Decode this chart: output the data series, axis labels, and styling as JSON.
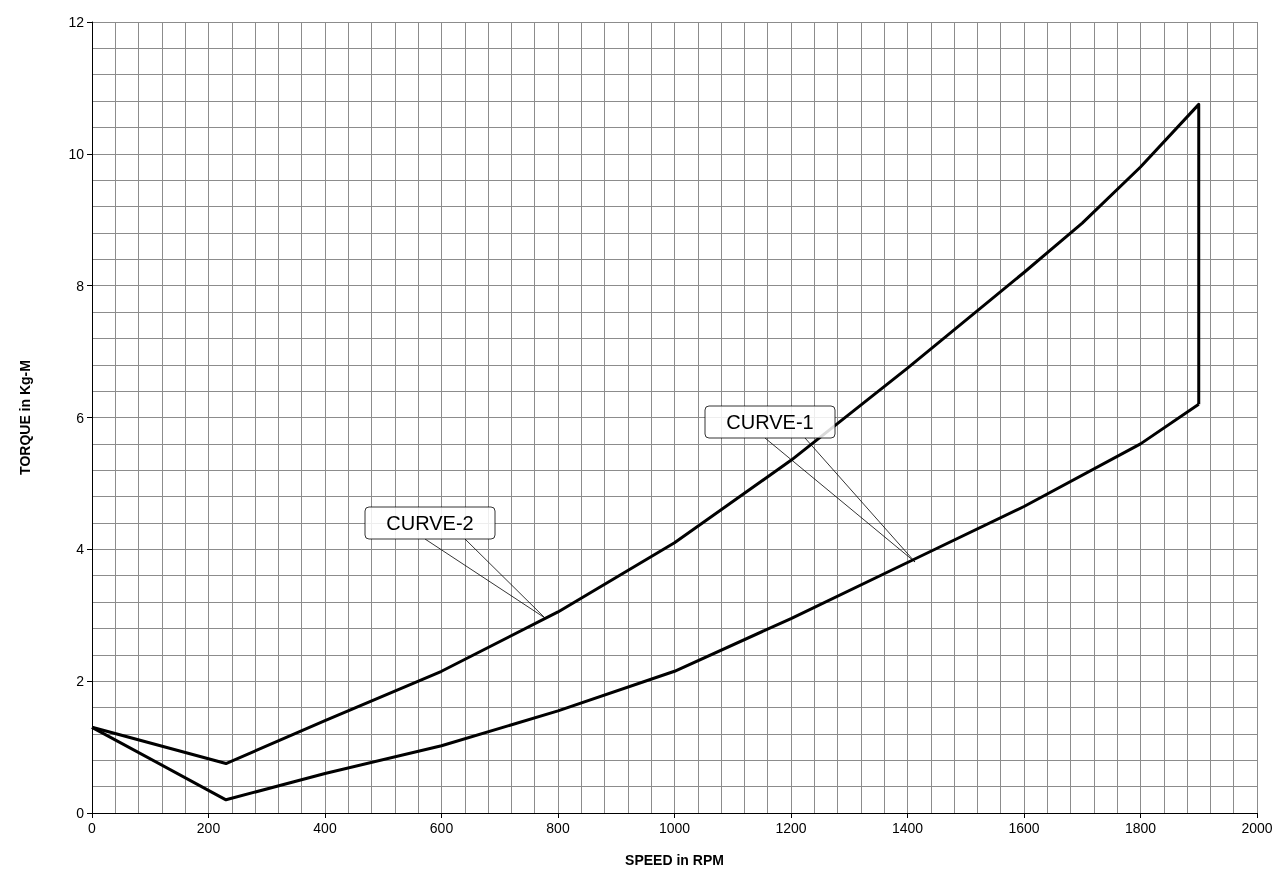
{
  "chart_data": {
    "type": "line",
    "xlabel": "SPEED in RPM",
    "ylabel": "TORQUE in Kg-M",
    "xlim": [
      0,
      2000
    ],
    "xticks": [
      0,
      200,
      400,
      600,
      800,
      1000,
      1200,
      1400,
      1600,
      1800,
      2000
    ],
    "ylim": [
      0,
      12
    ],
    "yticks": [
      0,
      2,
      4,
      6,
      8,
      10,
      12
    ],
    "grid": true,
    "marker": "none",
    "line_style": "solid",
    "series": [
      {
        "color": "#000000",
        "x": [
          0,
          230,
          400,
          600,
          800,
          1000,
          1200,
          1400,
          1600,
          1700,
          1800,
          1900,
          1900
        ],
        "values": [
          1.3,
          0.75,
          1.4,
          2.15,
          3.05,
          4.1,
          5.35,
          6.75,
          8.2,
          8.95,
          9.8,
          10.75,
          6.2
        ]
      },
      {
        "color": "#000000",
        "x": [
          0,
          230,
          400,
          600,
          800,
          1000,
          1200,
          1400,
          1600,
          1800,
          1900
        ],
        "values": [
          1.3,
          0.2,
          0.6,
          1.02,
          1.55,
          2.15,
          2.95,
          3.8,
          4.65,
          5.6,
          6.2
        ]
      }
    ],
    "annotations": [
      "CURVE-2",
      "CURVE-1"
    ]
  }
}
